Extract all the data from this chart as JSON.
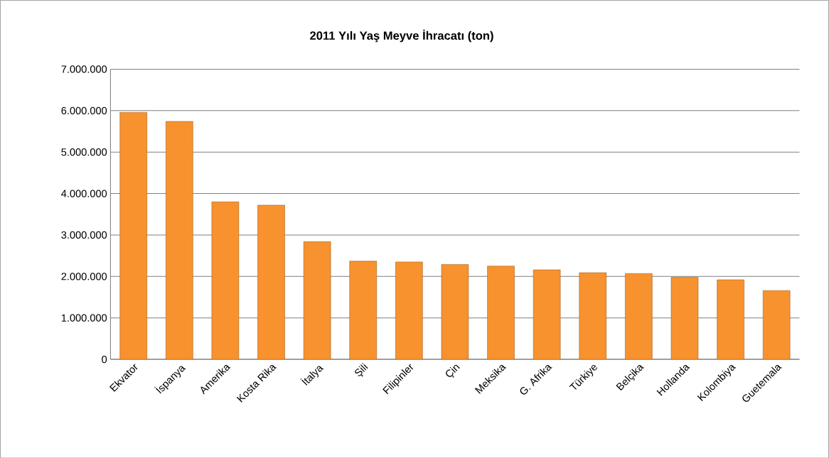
{
  "chart_data": {
    "type": "bar",
    "title": "2011 Yılı Yaş Meyve İhracatı (ton)",
    "categories": [
      "Ekvator",
      "İspanya",
      "Amerika",
      "Kosta Rika",
      "İtalya",
      "Şili",
      "Filipinler",
      "Çin",
      "Meksika",
      "G. Afrika",
      "Türkiye",
      "Belçika",
      "Hollanda",
      "Kolombiya",
      "Guetemala"
    ],
    "values": [
      5960000,
      5740000,
      3800000,
      3720000,
      2840000,
      2370000,
      2350000,
      2290000,
      2250000,
      2160000,
      2090000,
      2070000,
      1980000,
      1920000,
      1660000
    ],
    "color": "#f7922e",
    "ylim": [
      0,
      7000000
    ],
    "yticks": [
      {
        "value": 0,
        "label": "0"
      },
      {
        "value": 1000000,
        "label": "1.000.000"
      },
      {
        "value": 2000000,
        "label": "2.000.000"
      },
      {
        "value": 3000000,
        "label": "3.000.000"
      },
      {
        "value": 4000000,
        "label": "4.000.000"
      },
      {
        "value": 5000000,
        "label": "5.000.000"
      },
      {
        "value": 6000000,
        "label": "6.000.000"
      },
      {
        "value": 7000000,
        "label": "7.000.000"
      }
    ],
    "grid": "y"
  }
}
